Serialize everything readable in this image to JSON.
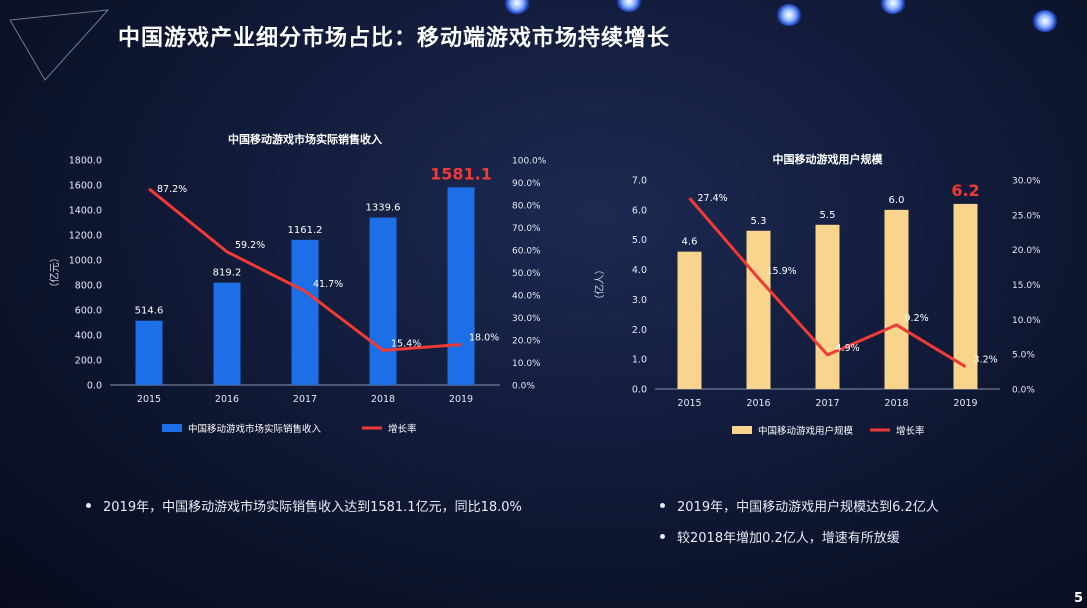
{
  "title": "中国游戏产业细分市场占比：移动端游戏市场持续增长",
  "page_number": "5",
  "bullets_left": [
    "2019年，中国移动游戏市场实际销售收入达到1581.1亿元，同比18.0%"
  ],
  "bullets_right": [
    "2019年，中国移动游戏用户规模达到6.2亿人",
    "较2018年增加0.2亿人，增速有所放缓"
  ],
  "colors": {
    "bar_left": "#1d6fe8",
    "bar_right": "#f9d48c",
    "line": "#ef3a36",
    "highlight": "#ef3a36"
  },
  "chart_data": [
    {
      "type": "bar",
      "title": "中国移动游戏市场实际销售收入",
      "categories": [
        "2015",
        "2016",
        "2017",
        "2018",
        "2019"
      ],
      "ylabel": "（亿元）",
      "ylim": [
        0,
        1800
      ],
      "yticks": [
        "0.0",
        "200.0",
        "400.0",
        "600.0",
        "800.0",
        "1000.0",
        "1200.0",
        "1400.0",
        "1600.0",
        "1800.0"
      ],
      "y2lim": [
        0,
        100
      ],
      "y2ticks": [
        "0.0%",
        "10.0%",
        "20.0%",
        "30.0%",
        "40.0%",
        "50.0%",
        "60.0%",
        "70.0%",
        "80.0%",
        "90.0%",
        "100.0%"
      ],
      "series": [
        {
          "name": "中国移动游戏市场实际销售收入",
          "type": "bar",
          "values": [
            514.6,
            819.2,
            1161.2,
            1339.6,
            1581.1
          ],
          "labels": [
            "514.6",
            "819.2",
            "1161.2",
            "1339.6",
            "1581.1"
          ]
        },
        {
          "name": "增长率",
          "type": "line",
          "axis": "right",
          "values": [
            87.2,
            59.2,
            41.7,
            15.4,
            18.0
          ],
          "labels": [
            "87.2%",
            "59.2%",
            "41.7%",
            "15.4%",
            "18.0%"
          ]
        }
      ],
      "highlight_index": 4
    },
    {
      "type": "bar",
      "title": "中国移动游戏用户规模",
      "categories": [
        "2015",
        "2016",
        "2017",
        "2018",
        "2019"
      ],
      "ylabel": "（亿人）",
      "ylim": [
        0,
        7
      ],
      "yticks": [
        "0.0",
        "1.0",
        "2.0",
        "3.0",
        "4.0",
        "5.0",
        "6.0",
        "7.0"
      ],
      "y2lim": [
        0,
        30
      ],
      "y2ticks": [
        "0.0%",
        "5.0%",
        "10.0%",
        "15.0%",
        "20.0%",
        "25.0%",
        "30.0%"
      ],
      "series": [
        {
          "name": "中国移动游戏用户规模",
          "type": "bar",
          "values": [
            4.6,
            5.3,
            5.5,
            6.0,
            6.2
          ],
          "labels": [
            "4.6",
            "5.3",
            "5.5",
            "6.0",
            "6.2"
          ]
        },
        {
          "name": "增长率",
          "type": "line",
          "axis": "right",
          "values": [
            27.4,
            15.9,
            4.9,
            9.2,
            3.2
          ],
          "labels": [
            "27.4%",
            "15.9%",
            "4.9%",
            "9.2%",
            "3.2%"
          ]
        }
      ],
      "highlight_index": 4
    }
  ]
}
